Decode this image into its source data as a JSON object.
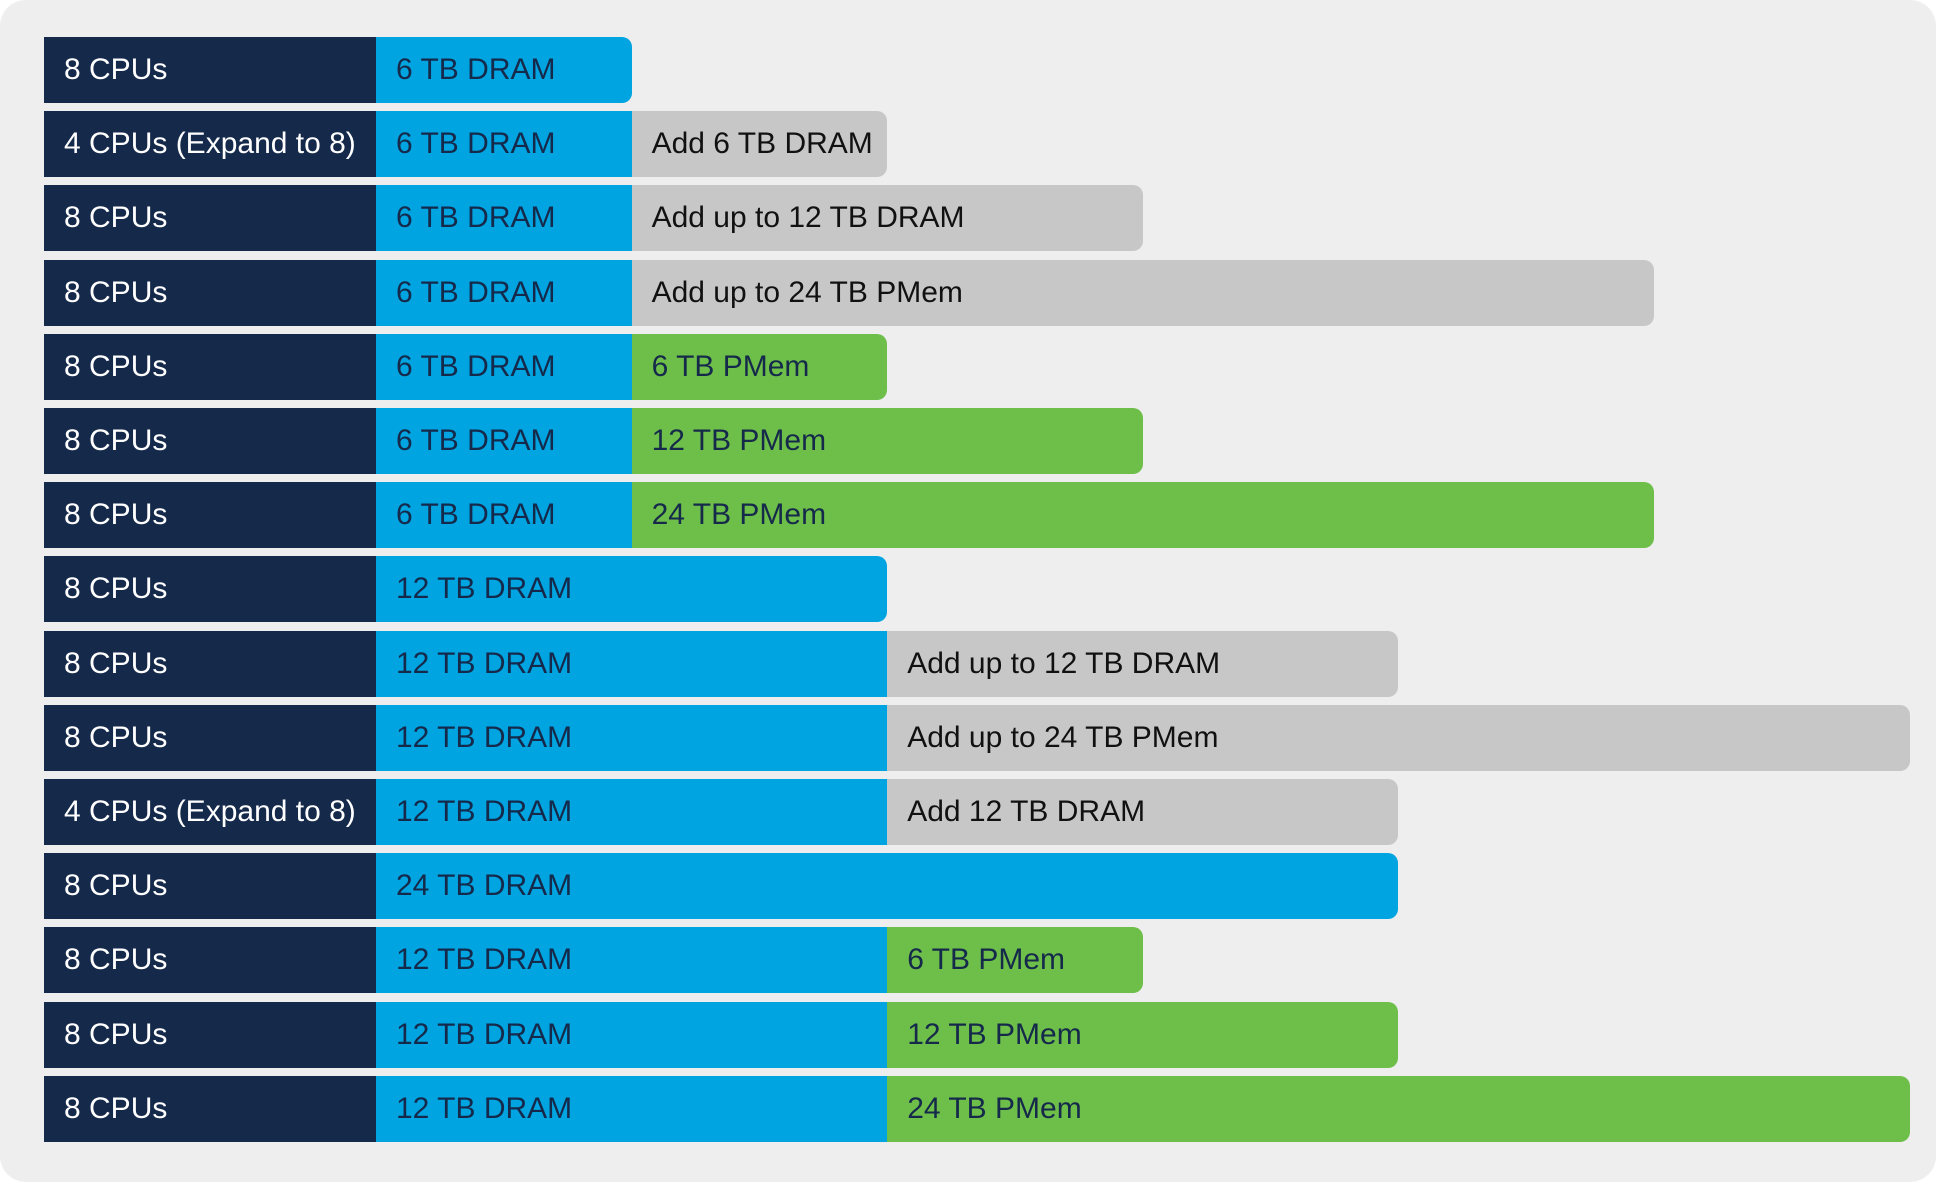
{
  "colors": {
    "background": "#eeeeee",
    "cpu": "#15294b",
    "dram": "#00a4e0",
    "dram_text": "#15294b",
    "pmem": "#6ebe4a",
    "pmem_text": "#15294b",
    "add": "#c8c7c8",
    "add_text": "#111111"
  },
  "rows": [
    {
      "cpu": "8 CPUs",
      "segments": [
        {
          "type": "dram",
          "label": "6 TB DRAM",
          "tb": 6
        }
      ]
    },
    {
      "cpu": "4 CPUs (Expand to 8)",
      "segments": [
        {
          "type": "dram",
          "label": "6 TB DRAM",
          "tb": 6
        },
        {
          "type": "add",
          "label": "Add 6 TB DRAM",
          "tb": 6
        }
      ]
    },
    {
      "cpu": "8 CPUs",
      "segments": [
        {
          "type": "dram",
          "label": "6 TB DRAM",
          "tb": 6
        },
        {
          "type": "add",
          "label": "Add up to 12 TB DRAM",
          "tb": 12
        }
      ]
    },
    {
      "cpu": "8 CPUs",
      "segments": [
        {
          "type": "dram",
          "label": "6 TB DRAM",
          "tb": 6
        },
        {
          "type": "add",
          "label": "Add up to 24 TB PMem",
          "tb": 24
        }
      ]
    },
    {
      "cpu": "8 CPUs",
      "segments": [
        {
          "type": "dram",
          "label": "6 TB DRAM",
          "tb": 6
        },
        {
          "type": "pmem",
          "label": "6 TB PMem",
          "tb": 6
        }
      ]
    },
    {
      "cpu": "8 CPUs",
      "segments": [
        {
          "type": "dram",
          "label": "6 TB DRAM",
          "tb": 6
        },
        {
          "type": "pmem",
          "label": "12 TB PMem",
          "tb": 12
        }
      ]
    },
    {
      "cpu": "8 CPUs",
      "segments": [
        {
          "type": "dram",
          "label": "6 TB DRAM",
          "tb": 6
        },
        {
          "type": "pmem",
          "label": "24 TB PMem",
          "tb": 24
        }
      ]
    },
    {
      "cpu": "8 CPUs",
      "segments": [
        {
          "type": "dram",
          "label": "12 TB DRAM",
          "tb": 12
        }
      ]
    },
    {
      "cpu": "8 CPUs",
      "segments": [
        {
          "type": "dram",
          "label": "12 TB DRAM",
          "tb": 12
        },
        {
          "type": "add",
          "label": "Add up to 12 TB DRAM",
          "tb": 12
        }
      ]
    },
    {
      "cpu": "8 CPUs",
      "segments": [
        {
          "type": "dram",
          "label": "12 TB DRAM",
          "tb": 12
        },
        {
          "type": "add",
          "label": "Add up to 24 TB PMem",
          "tb": 24
        }
      ]
    },
    {
      "cpu": "4 CPUs (Expand to 8)",
      "segments": [
        {
          "type": "dram",
          "label": "12 TB DRAM",
          "tb": 12
        },
        {
          "type": "add",
          "label": "Add 12 TB DRAM",
          "tb": 12
        }
      ]
    },
    {
      "cpu": "8 CPUs",
      "segments": [
        {
          "type": "dram",
          "label": "24 TB DRAM",
          "tb": 24
        }
      ]
    },
    {
      "cpu": "8 CPUs",
      "segments": [
        {
          "type": "dram",
          "label": "12 TB DRAM",
          "tb": 12
        },
        {
          "type": "pmem",
          "label": "6 TB PMem",
          "tb": 6
        }
      ]
    },
    {
      "cpu": "8 CPUs",
      "segments": [
        {
          "type": "dram",
          "label": "12 TB DRAM",
          "tb": 12
        },
        {
          "type": "pmem",
          "label": "12 TB PMem",
          "tb": 12
        }
      ]
    },
    {
      "cpu": "8 CPUs",
      "segments": [
        {
          "type": "dram",
          "label": "12 TB DRAM",
          "tb": 12
        },
        {
          "type": "pmem",
          "label": "24 TB PMem",
          "tb": 24
        }
      ]
    }
  ]
}
